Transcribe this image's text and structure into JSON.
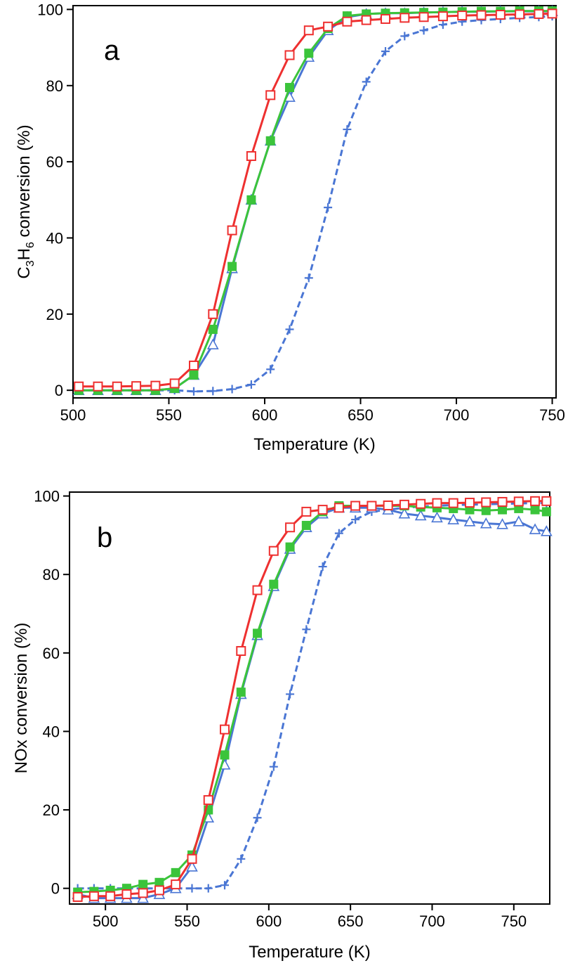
{
  "chart_data": [
    {
      "panel_label": "a",
      "type": "line",
      "xlabel": "Temperature (K)",
      "ylabel_parts": [
        "C",
        "3",
        "H",
        "6",
        " conversion (%)"
      ],
      "xlim": [
        500,
        752
      ],
      "ylim": [
        -2,
        101
      ],
      "xticks": [
        500,
        550,
        600,
        650,
        700,
        750
      ],
      "yticks": [
        0,
        20,
        40,
        60,
        80,
        100
      ],
      "grid": false,
      "series": [
        {
          "color": "#4a76d4",
          "marker": "plus",
          "dashed": true,
          "x": [
            503,
            513,
            523,
            533,
            543,
            553,
            563,
            573,
            583,
            593,
            603,
            613,
            623,
            633,
            643,
            653,
            663,
            673,
            683,
            693,
            703,
            713,
            723,
            733,
            743,
            750
          ],
          "y": [
            0,
            0,
            0,
            0,
            0,
            0,
            -0.3,
            -0.2,
            0.3,
            1.5,
            5.5,
            16,
            29.5,
            48,
            68.5,
            81,
            89,
            93,
            94.5,
            96,
            96.8,
            97.2,
            97.5,
            97.8,
            98,
            98.2
          ]
        },
        {
          "color": "#4a76d4",
          "marker": "triangle",
          "x": [
            503,
            513,
            523,
            533,
            543,
            553,
            563,
            573,
            583,
            593,
            603,
            613,
            623,
            633,
            643,
            653,
            663,
            673,
            683,
            693,
            703,
            713,
            723,
            733,
            743,
            750
          ],
          "y": [
            0,
            0,
            0,
            0,
            0,
            0.5,
            4,
            12,
            32,
            50,
            65.5,
            77,
            87.5,
            94.5,
            98,
            98.8,
            99,
            99,
            99.2,
            99.3,
            99.4,
            99.4,
            99.5,
            99.5,
            99.5,
            99.5
          ]
        },
        {
          "color": "#3bc43b",
          "marker": "square-filled",
          "x": [
            503,
            513,
            523,
            533,
            543,
            553,
            563,
            573,
            583,
            593,
            603,
            613,
            623,
            633,
            643,
            653,
            663,
            673,
            683,
            693,
            703,
            713,
            723,
            733,
            743,
            750
          ],
          "y": [
            0,
            0,
            0,
            0,
            0,
            0.5,
            4,
            16,
            32.5,
            50,
            65.5,
            79.5,
            88.5,
            95,
            98.3,
            98.8,
            99,
            99.1,
            99.2,
            99.3,
            99.4,
            99.5,
            99.5,
            99.6,
            99.6,
            99.6
          ]
        },
        {
          "color": "#ee3030",
          "marker": "square-open",
          "x": [
            503,
            513,
            523,
            533,
            543,
            553,
            563,
            573,
            583,
            593,
            603,
            613,
            623,
            633,
            643,
            653,
            663,
            673,
            683,
            693,
            703,
            713,
            723,
            733,
            743,
            750
          ],
          "y": [
            1,
            1,
            1,
            1.1,
            1.2,
            1.8,
            6.5,
            20,
            42,
            61.5,
            77.5,
            88,
            94.5,
            95.5,
            96.8,
            97.2,
            97.5,
            97.8,
            98,
            98.2,
            98.4,
            98.5,
            98.6,
            98.7,
            98.8,
            98.9
          ]
        }
      ]
    },
    {
      "panel_label": "b",
      "type": "line",
      "xlabel": "Temperature (K)",
      "ylabel": "NOx conversion (%)",
      "xlim": [
        478,
        772
      ],
      "ylim": [
        -4,
        101
      ],
      "xticks": [
        500,
        550,
        600,
        650,
        700,
        750
      ],
      "yticks": [
        0,
        20,
        40,
        60,
        80,
        100
      ],
      "grid": false,
      "series": [
        {
          "color": "#4a76d4",
          "marker": "plus",
          "dashed": true,
          "x": [
            483,
            493,
            503,
            513,
            523,
            533,
            543,
            553,
            563,
            573,
            583,
            593,
            603,
            613,
            623,
            633,
            643,
            653,
            663,
            673,
            683,
            693,
            703,
            713,
            723,
            733,
            743,
            753,
            763,
            770
          ],
          "y": [
            0,
            0,
            0,
            0,
            0,
            0,
            0,
            0,
            0,
            0.8,
            7.5,
            18,
            31,
            49.5,
            66,
            82,
            90.5,
            94,
            96,
            96.5,
            97,
            97.3,
            97.5,
            97.7,
            97.8,
            97.9,
            98,
            98.1,
            98.2,
            98.2
          ]
        },
        {
          "color": "#4a76d4",
          "marker": "triangle",
          "x": [
            483,
            493,
            503,
            513,
            523,
            533,
            543,
            553,
            563,
            573,
            583,
            593,
            603,
            613,
            623,
            633,
            643,
            653,
            663,
            673,
            683,
            693,
            703,
            713,
            723,
            733,
            743,
            753,
            763,
            770
          ],
          "y": [
            -1.5,
            -2.5,
            -2.5,
            -2.5,
            -2.5,
            -1.5,
            0,
            5.5,
            18,
            31.5,
            49.5,
            64.5,
            77,
            86.5,
            92,
            95.5,
            97,
            97,
            97,
            96.5,
            95.5,
            95,
            94.5,
            94,
            93.5,
            93,
            92.8,
            93.5,
            91.5,
            91
          ]
        },
        {
          "color": "#3bc43b",
          "marker": "square-filled",
          "x": [
            483,
            493,
            503,
            513,
            523,
            533,
            543,
            553,
            563,
            573,
            583,
            593,
            603,
            613,
            623,
            633,
            643,
            653,
            663,
            673,
            683,
            693,
            703,
            713,
            723,
            733,
            743,
            753,
            763,
            770
          ],
          "y": [
            -1,
            -0.8,
            -0.5,
            0,
            1,
            1.5,
            4,
            8.5,
            20,
            34,
            50,
            65,
            77.5,
            87,
            92.5,
            96,
            97.5,
            97.5,
            97.5,
            97.5,
            97.5,
            97.2,
            97,
            96.8,
            96.5,
            96.3,
            96.5,
            96.8,
            96.5,
            96
          ]
        },
        {
          "color": "#ee3030",
          "marker": "square-open",
          "x": [
            483,
            493,
            503,
            513,
            523,
            533,
            543,
            553,
            563,
            573,
            583,
            593,
            603,
            613,
            623,
            633,
            643,
            653,
            663,
            673,
            683,
            693,
            703,
            713,
            723,
            733,
            743,
            753,
            763,
            770
          ],
          "y": [
            -2.2,
            -2,
            -2,
            -1.5,
            -1.2,
            -0.5,
            1,
            7.5,
            22.5,
            40.5,
            60.5,
            76,
            86,
            92,
            96,
            96.5,
            97,
            97.5,
            97.5,
            97.6,
            97.8,
            98,
            98.2,
            98.2,
            98.3,
            98.4,
            98.5,
            98.6,
            98.7,
            98.7
          ]
        }
      ]
    }
  ]
}
